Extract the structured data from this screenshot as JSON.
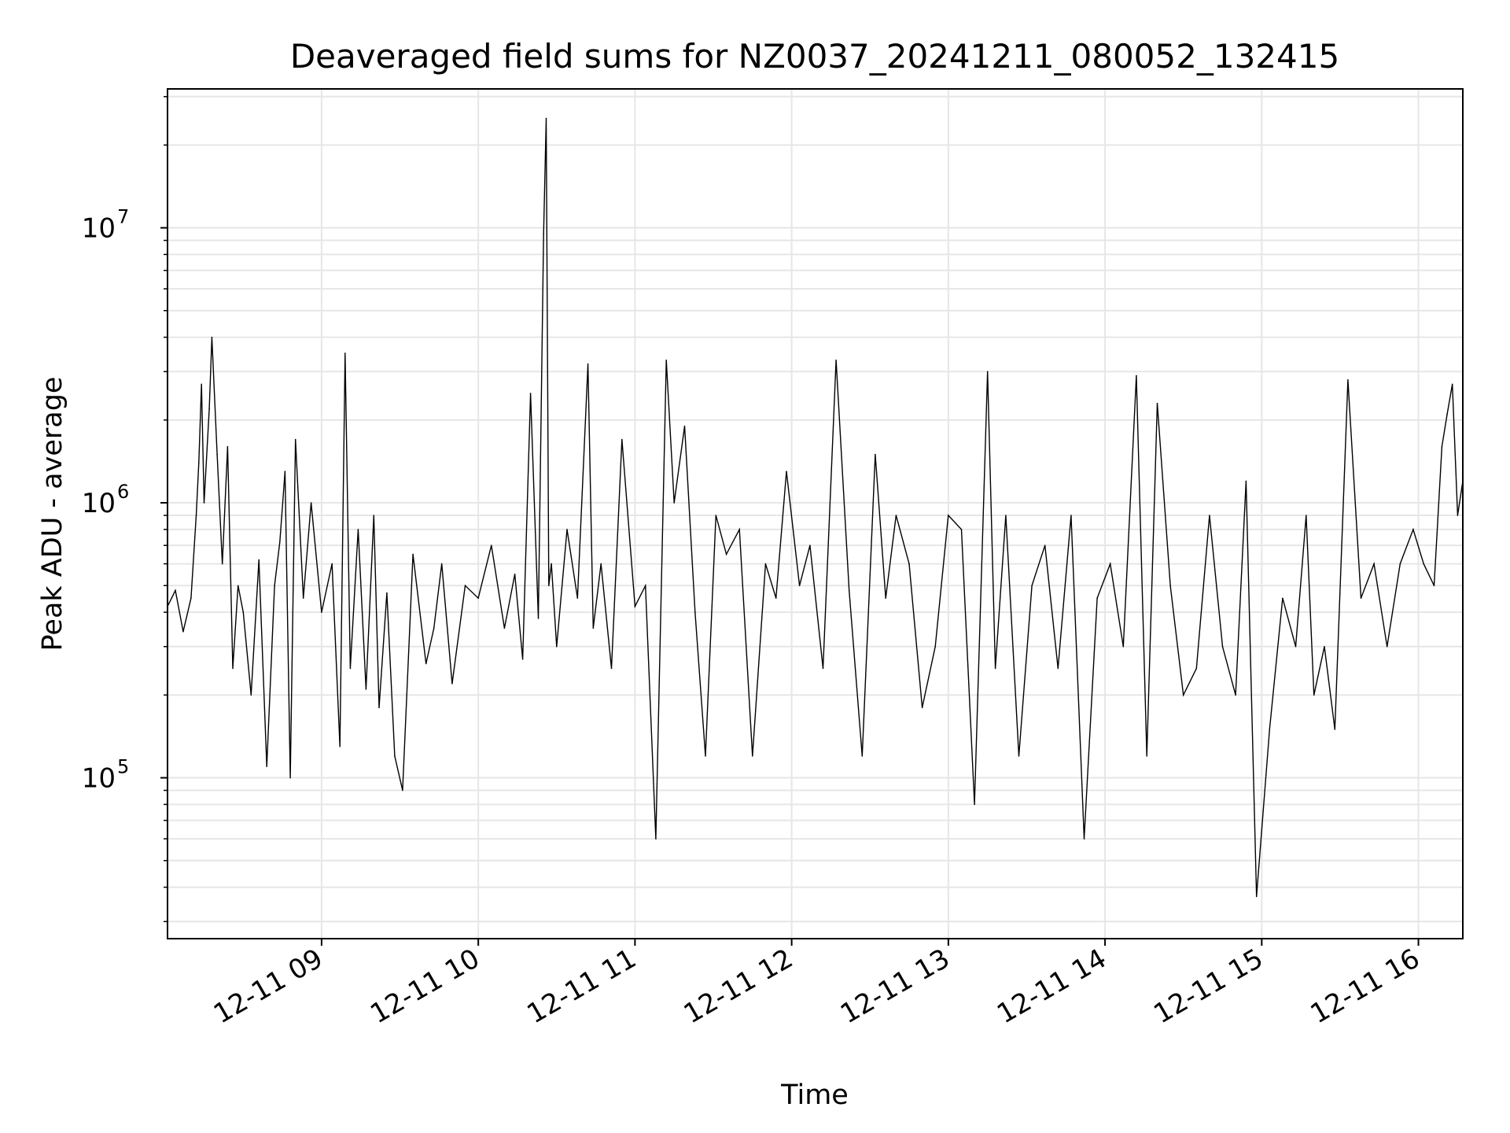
{
  "chart_data": {
    "type": "line",
    "title": "Deaveraged field sums for NZ0037_20241211_080052_132415",
    "xlabel": "Time",
    "ylabel": "Peak ADU - average",
    "yscale": "log",
    "ylim": [
      26000,
      32000000
    ],
    "xlim": [
      "2024-12-11 08:01",
      "2024-12-11 16:17"
    ],
    "grid": true,
    "line_color": "#000000",
    "grid_color": "#e6e6e6",
    "x_ticks": [
      {
        "t": "2024-12-11 09:00",
        "label": "12-11 09"
      },
      {
        "t": "2024-12-11 10:00",
        "label": "12-11 10"
      },
      {
        "t": "2024-12-11 11:00",
        "label": "12-11 11"
      },
      {
        "t": "2024-12-11 12:00",
        "label": "12-11 12"
      },
      {
        "t": "2024-12-11 13:00",
        "label": "12-11 13"
      },
      {
        "t": "2024-12-11 14:00",
        "label": "12-11 14"
      },
      {
        "t": "2024-12-11 15:00",
        "label": "12-11 15"
      },
      {
        "t": "2024-12-11 16:00",
        "label": "12-11 16"
      }
    ],
    "y_ticks": [
      {
        "value": 100000,
        "base": "10",
        "exp": "5"
      },
      {
        "value": 1000000,
        "base": "10",
        "exp": "6"
      },
      {
        "value": 10000000,
        "base": "10",
        "exp": "7"
      }
    ],
    "series": [
      {
        "x": [
          "2024-12-11 08:01",
          "2024-12-11 08:04",
          "2024-12-11 08:07",
          "2024-12-11 08:10",
          "2024-12-11 08:12",
          "2024-12-11 08:13",
          "2024-12-11 08:14",
          "2024-12-11 08:15",
          "2024-12-11 08:17",
          "2024-12-11 08:18",
          "2024-12-11 08:20",
          "2024-12-11 08:22",
          "2024-12-11 08:24",
          "2024-12-11 08:26",
          "2024-12-11 08:28",
          "2024-12-11 08:30",
          "2024-12-11 08:33",
          "2024-12-11 08:36",
          "2024-12-11 08:39",
          "2024-12-11 08:42",
          "2024-12-11 08:44",
          "2024-12-11 08:46",
          "2024-12-11 08:48",
          "2024-12-11 08:50",
          "2024-12-11 08:53",
          "2024-12-11 08:56",
          "2024-12-11 09:00",
          "2024-12-11 09:04",
          "2024-12-11 09:07",
          "2024-12-11 09:09",
          "2024-12-11 09:11",
          "2024-12-11 09:14",
          "2024-12-11 09:17",
          "2024-12-11 09:20",
          "2024-12-11 09:22",
          "2024-12-11 09:25",
          "2024-12-11 09:28",
          "2024-12-11 09:31",
          "2024-12-11 09:35",
          "2024-12-11 09:40",
          "2024-12-11 09:43",
          "2024-12-11 09:46",
          "2024-12-11 09:50",
          "2024-12-11 09:55",
          "2024-12-11 10:00",
          "2024-12-11 10:05",
          "2024-12-11 10:10",
          "2024-12-11 10:14",
          "2024-12-11 10:17",
          "2024-12-11 10:20",
          "2024-12-11 10:23",
          "2024-12-11 10:25",
          "2024-12-11 10:26",
          "2024-12-11 10:27",
          "2024-12-11 10:28",
          "2024-12-11 10:30",
          "2024-12-11 10:34",
          "2024-12-11 10:38",
          "2024-12-11 10:42",
          "2024-12-11 10:44",
          "2024-12-11 10:47",
          "2024-12-11 10:51",
          "2024-12-11 10:55",
          "2024-12-11 11:00",
          "2024-12-11 11:04",
          "2024-12-11 11:08",
          "2024-12-11 11:12",
          "2024-12-11 11:15",
          "2024-12-11 11:19",
          "2024-12-11 11:23",
          "2024-12-11 11:27",
          "2024-12-11 11:31",
          "2024-12-11 11:35",
          "2024-12-11 11:40",
          "2024-12-11 11:45",
          "2024-12-11 11:50",
          "2024-12-11 11:54",
          "2024-12-11 11:58",
          "2024-12-11 12:03",
          "2024-12-11 12:07",
          "2024-12-11 12:12",
          "2024-12-11 12:17",
          "2024-12-11 12:22",
          "2024-12-11 12:27",
          "2024-12-11 12:32",
          "2024-12-11 12:36",
          "2024-12-11 12:40",
          "2024-12-11 12:45",
          "2024-12-11 12:50",
          "2024-12-11 12:55",
          "2024-12-11 13:00",
          "2024-12-11 13:05",
          "2024-12-11 13:10",
          "2024-12-11 13:15",
          "2024-12-11 13:18",
          "2024-12-11 13:22",
          "2024-12-11 13:27",
          "2024-12-11 13:32",
          "2024-12-11 13:37",
          "2024-12-11 13:42",
          "2024-12-11 13:47",
          "2024-12-11 13:52",
          "2024-12-11 13:57",
          "2024-12-11 14:02",
          "2024-12-11 14:07",
          "2024-12-11 14:12",
          "2024-12-11 14:16",
          "2024-12-11 14:20",
          "2024-12-11 14:25",
          "2024-12-11 14:30",
          "2024-12-11 14:35",
          "2024-12-11 14:40",
          "2024-12-11 14:45",
          "2024-12-11 14:50",
          "2024-12-11 14:54",
          "2024-12-11 14:58",
          "2024-12-11 15:03",
          "2024-12-11 15:08",
          "2024-12-11 15:13",
          "2024-12-11 15:17",
          "2024-12-11 15:20",
          "2024-12-11 15:24",
          "2024-12-11 15:28",
          "2024-12-11 15:33",
          "2024-12-11 15:38",
          "2024-12-11 15:43",
          "2024-12-11 15:48",
          "2024-12-11 15:53",
          "2024-12-11 15:58",
          "2024-12-11 16:02",
          "2024-12-11 16:06",
          "2024-12-11 16:09",
          "2024-12-11 16:11",
          "2024-12-11 16:13",
          "2024-12-11 16:15",
          "2024-12-11 16:17"
        ],
        "y": [
          420000,
          480000,
          340000,
          450000,
          900000,
          1400000,
          2700000,
          1000000,
          2200000,
          4000000,
          1500000,
          600000,
          1600000,
          250000,
          500000,
          400000,
          200000,
          620000,
          110000,
          500000,
          720000,
          1300000,
          100000,
          1700000,
          450000,
          1000000,
          400000,
          600000,
          130000,
          3500000,
          250000,
          800000,
          210000,
          900000,
          180000,
          470000,
          120000,
          90000,
          650000,
          260000,
          350000,
          600000,
          220000,
          500000,
          450000,
          700000,
          350000,
          550000,
          270000,
          2500000,
          380000,
          9500000,
          25000000,
          500000,
          600000,
          300000,
          800000,
          450000,
          3200000,
          350000,
          600000,
          250000,
          1700000,
          420000,
          500000,
          60000,
          3300000,
          1000000,
          1900000,
          400000,
          120000,
          900000,
          650000,
          800000,
          120000,
          600000,
          450000,
          1300000,
          500000,
          700000,
          250000,
          3300000,
          480000,
          120000,
          1500000,
          450000,
          900000,
          600000,
          180000,
          300000,
          900000,
          800000,
          80000,
          3000000,
          250000,
          900000,
          120000,
          500000,
          700000,
          250000,
          900000,
          60000,
          450000,
          600000,
          300000,
          2900000,
          120000,
          2300000,
          500000,
          200000,
          250000,
          900000,
          300000,
          200000,
          1200000,
          37000,
          150000,
          450000,
          300000,
          900000,
          200000,
          300000,
          150000,
          2800000,
          450000,
          600000,
          300000,
          600000,
          800000,
          600000,
          500000,
          1600000,
          2100000,
          2700000,
          900000,
          1200000
        ]
      }
    ]
  }
}
